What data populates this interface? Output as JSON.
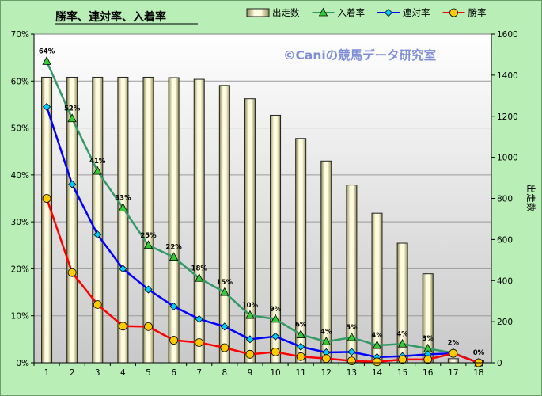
{
  "chart_data": {
    "type": "bar+line",
    "title": "勝率、連対率、入着率",
    "watermark": "©Caniの競馬データ研究室",
    "x": [
      1,
      2,
      3,
      4,
      5,
      6,
      7,
      8,
      9,
      10,
      11,
      12,
      13,
      14,
      15,
      16,
      17,
      18
    ],
    "y_left": {
      "ticks": [
        0,
        10,
        20,
        30,
        40,
        50,
        60,
        70
      ],
      "unit": "%",
      "ylim": [
        0,
        70
      ]
    },
    "y_right": {
      "label": "出走数",
      "ticks": [
        0,
        200,
        400,
        600,
        800,
        1000,
        1200,
        1400,
        1600
      ],
      "ylim": [
        0,
        1600
      ]
    },
    "series": [
      {
        "name": "出走数",
        "kind": "bar",
        "axis": "right",
        "values": [
          1390,
          1390,
          1390,
          1390,
          1390,
          1388,
          1380,
          1350,
          1285,
          1205,
          1092,
          982,
          865,
          728,
          582,
          433,
          20,
          10
        ]
      },
      {
        "name": "入着率",
        "kind": "line",
        "axis": "left",
        "color": "#339966",
        "marker": "triangle",
        "values": [
          64.2,
          52.0,
          40.8,
          33.0,
          25.0,
          22.5,
          18.0,
          15.0,
          10.1,
          9.3,
          6.0,
          4.5,
          5.4,
          3.7,
          4.0,
          3.0,
          2.1,
          0
        ],
        "labels": [
          "64%",
          "52%",
          "41%",
          "33%",
          "25%",
          "22%",
          "18%",
          "15%",
          "10%",
          "9%",
          "6%",
          "4%",
          "5%",
          "4%",
          "4%",
          "3%",
          "2%",
          "0%"
        ]
      },
      {
        "name": "連対率",
        "kind": "line",
        "axis": "left",
        "color": "#0000ff",
        "marker": "diamond",
        "values": [
          54.5,
          38.0,
          27.3,
          20.0,
          15.6,
          12.0,
          9.3,
          7.7,
          5.0,
          5.6,
          3.4,
          2.2,
          2.3,
          1.2,
          1.4,
          1.8,
          2.0,
          0
        ]
      },
      {
        "name": "勝率",
        "kind": "line",
        "axis": "left",
        "color": "#ff0000",
        "marker": "circle",
        "values": [
          35.0,
          19.2,
          12.4,
          7.8,
          7.7,
          4.8,
          4.3,
          3.2,
          1.8,
          2.3,
          1.3,
          0.9,
          0.4,
          0.2,
          0.7,
          0.7,
          2.0,
          0
        ]
      }
    ],
    "legend_placement": "top"
  }
}
